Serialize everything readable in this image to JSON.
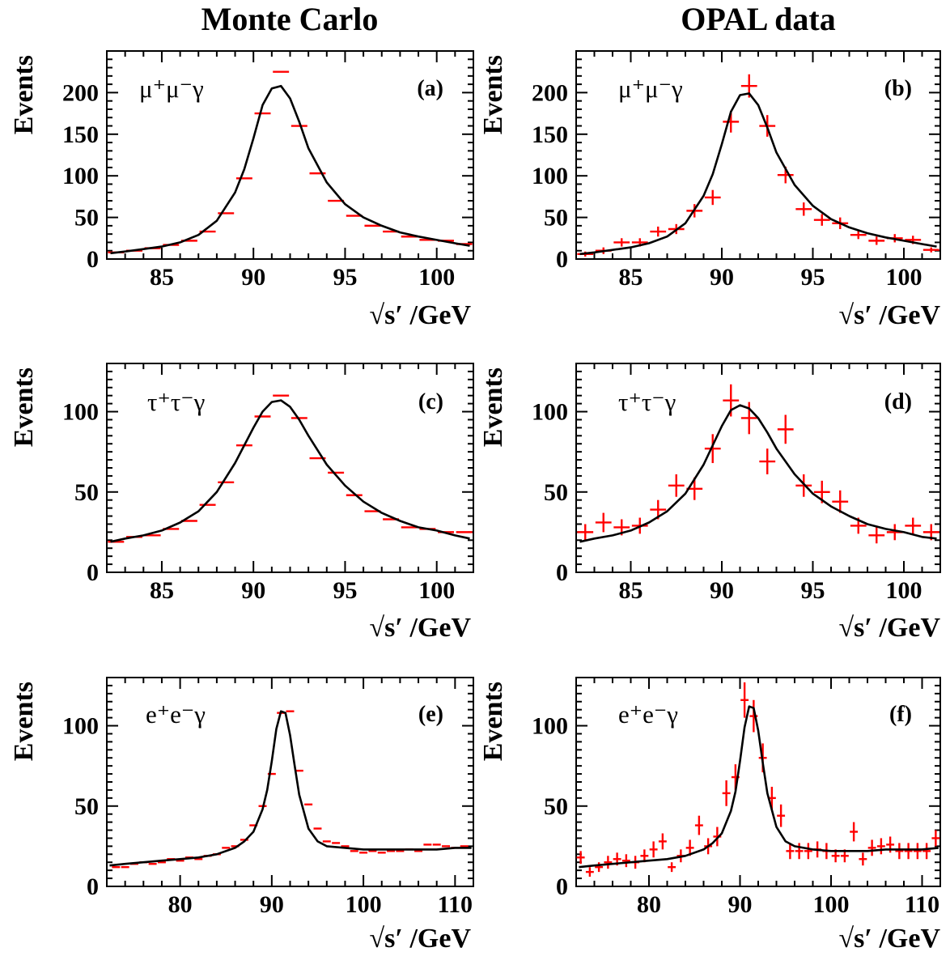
{
  "column_titles": [
    "Monte Carlo",
    "OPAL data"
  ],
  "colors": {
    "data_points": "#ff0000",
    "fit_curve": "#000000",
    "frame": "#000000",
    "background": "#ffffff"
  },
  "chart_data": [
    {
      "id": "a",
      "type": "scatter",
      "panel_tag": "(a)",
      "process": "μ⁺μ⁻γ",
      "xlabel": "√s′ /GeV",
      "ylabel": "Events",
      "xlim": [
        82,
        102
      ],
      "ylim": [
        0,
        250
      ],
      "xticks": [
        85,
        90,
        95,
        100
      ],
      "yticks": [
        0,
        50,
        100,
        150,
        200
      ],
      "series": [
        {
          "kind": "points",
          "x": [
            82.5,
            83.5,
            84.5,
            85.5,
            86.5,
            87.5,
            88.5,
            89.5,
            90.5,
            91.5,
            92.5,
            93.5,
            94.5,
            95.5,
            96.5,
            97.5,
            98.5,
            99.5,
            100.5,
            101.5
          ],
          "y": [
            8,
            10,
            13,
            17,
            22,
            33,
            55,
            97,
            175,
            225,
            160,
            103,
            70,
            52,
            40,
            33,
            27,
            23,
            22,
            18
          ],
          "yerr": [
            0,
            0,
            0,
            0,
            0,
            0,
            0,
            0,
            0,
            0,
            0,
            0,
            0,
            0,
            0,
            0,
            0,
            0,
            0,
            0
          ]
        },
        {
          "kind": "curve",
          "x": [
            82.2,
            83,
            84,
            85,
            86,
            87,
            88,
            89,
            89.5,
            90,
            90.5,
            91,
            91.5,
            92,
            92.5,
            93,
            94,
            95,
            96,
            97,
            98,
            99,
            100,
            101,
            101.8
          ],
          "y": [
            7,
            9,
            12,
            15,
            20,
            29,
            46,
            80,
            108,
            145,
            185,
            205,
            208,
            193,
            165,
            133,
            92,
            66,
            50,
            40,
            32,
            27,
            23,
            19,
            16
          ]
        }
      ]
    },
    {
      "id": "b",
      "type": "scatter",
      "panel_tag": "(b)",
      "process": "μ⁺μ⁻γ",
      "xlabel": "√s′ /GeV",
      "ylabel": "Events",
      "xlim": [
        82,
        102
      ],
      "ylim": [
        0,
        250
      ],
      "xticks": [
        85,
        90,
        95,
        100
      ],
      "yticks": [
        0,
        50,
        100,
        150,
        200
      ],
      "series": [
        {
          "kind": "points",
          "x": [
            82.5,
            83.5,
            84.5,
            85.5,
            86.5,
            87.5,
            88.5,
            89.5,
            90.5,
            91.5,
            92.5,
            93.5,
            94.5,
            95.5,
            96.5,
            97.5,
            98.5,
            99.5,
            100.5,
            101.5
          ],
          "y": [
            6,
            10,
            20,
            20,
            33,
            36,
            58,
            74,
            165,
            208,
            160,
            101,
            60,
            47,
            43,
            29,
            22,
            25,
            23,
            11
          ],
          "yerr": [
            3,
            4,
            5,
            5,
            6,
            6,
            8,
            9,
            13,
            14,
            13,
            10,
            8,
            7,
            7,
            5,
            5,
            5,
            5,
            3
          ]
        },
        {
          "kind": "curve",
          "x": [
            82.2,
            83,
            84,
            85,
            86,
            87,
            88,
            89,
            89.5,
            90,
            90.5,
            91,
            91.5,
            92,
            92.5,
            93,
            94,
            95,
            96,
            97,
            98,
            99,
            100,
            101,
            101.8
          ],
          "y": [
            6,
            8,
            11,
            14,
            19,
            27,
            43,
            76,
            102,
            138,
            177,
            197,
            199,
            185,
            158,
            128,
            89,
            64,
            48,
            38,
            31,
            26,
            22,
            18,
            15
          ]
        }
      ]
    },
    {
      "id": "c",
      "type": "scatter",
      "panel_tag": "(c)",
      "process": "τ⁺τ⁻γ",
      "xlabel": "√s′ /GeV",
      "ylabel": "Events",
      "xlim": [
        82,
        102
      ],
      "ylim": [
        0,
        130
      ],
      "xticks": [
        85,
        90,
        95,
        100
      ],
      "yticks": [
        0,
        50,
        100
      ],
      "series": [
        {
          "kind": "points",
          "x": [
            82.5,
            83.5,
            84.5,
            85.5,
            86.5,
            87.5,
            88.5,
            89.5,
            90.5,
            91.5,
            92.5,
            93.5,
            94.5,
            95.5,
            96.5,
            97.5,
            98.5,
            99.5,
            100.5,
            101.5
          ],
          "y": [
            19,
            22,
            23,
            27,
            32,
            42,
            56,
            79,
            97,
            110,
            96,
            71,
            62,
            48,
            38,
            33,
            28,
            27,
            25,
            25
          ],
          "yerr": [
            0,
            0,
            0,
            0,
            0,
            0,
            0,
            0,
            0,
            0,
            0,
            0,
            0,
            0,
            0,
            0,
            0,
            0,
            0,
            0
          ]
        },
        {
          "kind": "curve",
          "x": [
            82.2,
            83,
            84,
            85,
            86,
            87,
            88,
            89,
            90,
            90.5,
            91,
            91.5,
            92,
            92.5,
            93,
            94,
            95,
            96,
            97,
            98,
            99,
            100,
            101,
            101.8
          ],
          "y": [
            19,
            21,
            23,
            26,
            31,
            38,
            50,
            68,
            90,
            100,
            106,
            107,
            103,
            95,
            85,
            67,
            54,
            44,
            37,
            32,
            28,
            26,
            23,
            21
          ]
        }
      ]
    },
    {
      "id": "d",
      "type": "scatter",
      "panel_tag": "(d)",
      "process": "τ⁺τ⁻γ",
      "xlabel": "√s′ /GeV",
      "ylabel": "Events",
      "xlim": [
        82,
        102
      ],
      "ylim": [
        0,
        130
      ],
      "xticks": [
        85,
        90,
        95,
        100
      ],
      "yticks": [
        0,
        50,
        100
      ],
      "series": [
        {
          "kind": "points",
          "x": [
            82.5,
            83.5,
            84.5,
            85.5,
            86.5,
            87.5,
            88.5,
            89.5,
            90.5,
            91.5,
            92.5,
            93.5,
            94.5,
            95.5,
            96.5,
            97.5,
            98.5,
            99.5,
            100.5,
            101.5
          ],
          "y": [
            25,
            31,
            28,
            29,
            39,
            54,
            52,
            77,
            107,
            96,
            69,
            89,
            54,
            50,
            44,
            29,
            23,
            25,
            29,
            25
          ],
          "yerr": [
            5,
            6,
            5,
            5,
            6,
            7,
            7,
            9,
            10,
            10,
            8,
            9,
            7,
            7,
            7,
            5,
            5,
            5,
            5,
            5
          ]
        },
        {
          "kind": "curve",
          "x": [
            82.2,
            83,
            84,
            85,
            86,
            87,
            88,
            89,
            90,
            90.5,
            91,
            91.5,
            92,
            92.5,
            93,
            94,
            95,
            96,
            97,
            98,
            99,
            100,
            101,
            101.8
          ],
          "y": [
            19,
            21,
            23,
            26,
            31,
            38,
            49,
            67,
            91,
            101,
            104,
            102,
            96,
            87,
            77,
            61,
            49,
            41,
            35,
            30,
            27,
            25,
            22,
            21
          ]
        }
      ]
    },
    {
      "id": "e",
      "type": "scatter",
      "panel_tag": "(e)",
      "process": "e⁺e⁻γ",
      "xlabel": "√s′ /GeV",
      "ylabel": "Events",
      "xlim": [
        72,
        112
      ],
      "ylim": [
        0,
        130
      ],
      "xticks": [
        80,
        90,
        100,
        110
      ],
      "yticks": [
        0,
        50,
        100
      ],
      "series": [
        {
          "kind": "points",
          "x": [
            73,
            74,
            75,
            76,
            77,
            78,
            79,
            80,
            81,
            82,
            83,
            84,
            85,
            86,
            87,
            88,
            89,
            90,
            91,
            92,
            93,
            94,
            95,
            96,
            97,
            98,
            99,
            100,
            101,
            102,
            103,
            104,
            105,
            106,
            107,
            108,
            109,
            110,
            111
          ],
          "y": [
            12,
            12,
            14,
            15,
            14,
            15,
            17,
            16,
            18,
            17,
            19,
            20,
            24,
            25,
            29,
            38,
            50,
            70,
            108,
            109,
            72,
            51,
            36,
            28,
            27,
            25,
            22,
            21,
            22,
            21,
            22,
            22,
            23,
            22,
            26,
            26,
            25,
            24,
            25
          ],
          "yerr": [
            0,
            0,
            0,
            0,
            0,
            0,
            0,
            0,
            0,
            0,
            0,
            0,
            0,
            0,
            0,
            0,
            0,
            0,
            0,
            0,
            0,
            0,
            0,
            0,
            0,
            0,
            0,
            0,
            0,
            0,
            0,
            0,
            0,
            0,
            0,
            0,
            0,
            0,
            0
          ]
        },
        {
          "kind": "curve",
          "x": [
            72.3,
            74,
            76,
            78,
            80,
            82,
            84,
            86,
            87,
            88,
            89,
            89.5,
            90,
            90.5,
            91,
            91.5,
            92,
            92.5,
            93,
            94,
            95,
            96,
            98,
            100,
            102,
            104,
            106,
            108,
            110,
            111.8
          ],
          "y": [
            13,
            14,
            15,
            16,
            17,
            18,
            20,
            24,
            28,
            34,
            48,
            60,
            78,
            98,
            109,
            108,
            94,
            75,
            57,
            36,
            28,
            25,
            24,
            23,
            23,
            23,
            23,
            23,
            24,
            24
          ]
        }
      ]
    },
    {
      "id": "f",
      "type": "scatter",
      "panel_tag": "(f)",
      "process": "e⁺e⁻γ",
      "xlabel": "√s′ /GeV",
      "ylabel": "Events",
      "xlim": [
        72,
        112
      ],
      "ylim": [
        0,
        130
      ],
      "xticks": [
        80,
        90,
        100,
        110
      ],
      "yticks": [
        0,
        50,
        100
      ],
      "series": [
        {
          "kind": "points",
          "x": [
            72.5,
            73.5,
            74.5,
            75.5,
            76.5,
            77.5,
            78.5,
            79.5,
            80.5,
            81.5,
            82.5,
            83.5,
            84.5,
            85.5,
            86.5,
            87.5,
            88.5,
            89.5,
            90.5,
            91.5,
            92.5,
            93.5,
            94.5,
            95.5,
            96.5,
            97.5,
            98.5,
            99.5,
            100.5,
            101.5,
            102.5,
            103.5,
            104.5,
            105.5,
            106.5,
            107.5,
            108.5,
            109.5,
            110.5,
            111.5
          ],
          "y": [
            18,
            9,
            12,
            15,
            17,
            16,
            15,
            19,
            23,
            28,
            12,
            19,
            24,
            38,
            25,
            31,
            58,
            68,
            116,
            106,
            80,
            55,
            44,
            22,
            22,
            22,
            23,
            22,
            19,
            19,
            34,
            17,
            24,
            25,
            26,
            22,
            22,
            22,
            22,
            30
          ],
          "yerr": [
            4,
            3,
            3,
            4,
            4,
            4,
            4,
            4,
            5,
            5,
            3,
            4,
            5,
            6,
            5,
            6,
            8,
            8,
            11,
            10,
            9,
            7,
            7,
            5,
            5,
            5,
            5,
            5,
            4,
            4,
            6,
            4,
            5,
            5,
            5,
            5,
            5,
            5,
            5,
            5
          ]
        },
        {
          "kind": "curve",
          "x": [
            72.3,
            74,
            76,
            78,
            80,
            82,
            84,
            86,
            87,
            88,
            89,
            89.5,
            90,
            90.5,
            91,
            91.5,
            92,
            92.5,
            93,
            94,
            95,
            96,
            98,
            100,
            102,
            104,
            106,
            108,
            110,
            111.8
          ],
          "y": [
            12,
            13,
            14,
            15,
            16,
            17,
            19,
            23,
            27,
            33,
            47,
            59,
            78,
            99,
            112,
            111,
            97,
            77,
            58,
            37,
            28,
            25,
            23,
            22,
            22,
            22,
            23,
            23,
            23,
            24
          ]
        }
      ]
    }
  ]
}
